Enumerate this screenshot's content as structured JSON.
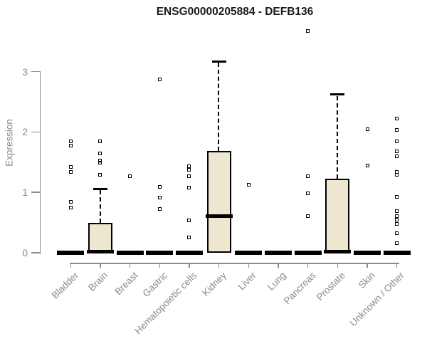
{
  "title": "ENSG00000205884 - DEFB136",
  "chart_data": {
    "type": "boxplot",
    "title": "ENSG00000205884 - DEFB136",
    "xlabel": "",
    "ylabel": "Expression",
    "yticks": [
      0,
      1,
      2,
      3
    ],
    "ylim": [
      0,
      3.2
    ],
    "grid": false,
    "legend": false,
    "box_fill_color": "#ece7ce",
    "box_stroke_color": "#000000",
    "axis_color": "#8c8c8c",
    "tick_label_color": "#8a8a8a",
    "title_color": "#1a1a1a",
    "categories": [
      "Bladder",
      "Brain",
      "Breast",
      "Gastric",
      "Hematopoietic cells",
      "Kidney",
      "Liver",
      "Lung",
      "Pancreas",
      "Prostate",
      "Skin",
      "Unknown / Other"
    ],
    "series": [
      {
        "category": "Bladder",
        "q1": 0,
        "median": 0,
        "q3": 0,
        "whisker_low": 0,
        "whisker_high": 0,
        "outliers": [
          1.85,
          1.77,
          1.42,
          1.34,
          0.84,
          0.75
        ]
      },
      {
        "category": "Brain",
        "q1": 0,
        "median": 0.02,
        "q3": 0.49,
        "whisker_low": 0,
        "whisker_high": 1.06,
        "outliers": [
          1.85,
          1.65,
          1.53,
          1.49,
          1.29
        ]
      },
      {
        "category": "Breast",
        "q1": 0,
        "median": 0,
        "q3": 0,
        "whisker_low": 0,
        "whisker_high": 0,
        "outliers": [
          1.27
        ]
      },
      {
        "category": "Gastric",
        "q1": 0,
        "median": 0,
        "q3": 0,
        "whisker_low": 0,
        "whisker_high": 0,
        "outliers": [
          2.87,
          1.09,
          0.92,
          0.73
        ]
      },
      {
        "category": "Hematopoietic cells",
        "q1": 0,
        "median": 0,
        "q3": 0,
        "whisker_low": 0,
        "whisker_high": 0,
        "outliers": [
          1.43,
          1.38,
          1.27,
          1.08,
          0.54,
          0.25
        ]
      },
      {
        "category": "Kidney",
        "q1": 0,
        "median": 0.61,
        "q3": 1.69,
        "whisker_low": 0,
        "whisker_high": 3.17,
        "outliers": []
      },
      {
        "category": "Liver",
        "q1": 0,
        "median": 0,
        "q3": 0,
        "whisker_low": 0,
        "whisker_high": 0,
        "outliers": [
          1.13
        ]
      },
      {
        "category": "Lung",
        "q1": 0,
        "median": 0,
        "q3": 0,
        "whisker_low": 0,
        "whisker_high": 0,
        "outliers": []
      },
      {
        "category": "Pancreas",
        "q1": 0,
        "median": 0,
        "q3": 0,
        "whisker_low": 0,
        "whisker_high": 0,
        "outliers": [
          3.68,
          1.27,
          0.98,
          0.61
        ]
      },
      {
        "category": "Prostate",
        "q1": 0,
        "median": 0.02,
        "q3": 1.23,
        "whisker_low": 0,
        "whisker_high": 2.62,
        "outliers": []
      },
      {
        "category": "Skin",
        "q1": 0,
        "median": 0,
        "q3": 0,
        "whisker_low": 0,
        "whisker_high": 0,
        "outliers": [
          2.05,
          1.44
        ]
      },
      {
        "category": "Unknown / Other",
        "q1": 0,
        "median": 0,
        "q3": 0,
        "whisker_low": 0,
        "whisker_high": 0,
        "outliers": [
          2.22,
          2.03,
          1.85,
          1.68,
          1.6,
          1.34,
          1.29,
          0.93,
          0.69,
          0.61,
          0.55,
          0.48,
          0.33,
          0.16
        ]
      }
    ]
  }
}
